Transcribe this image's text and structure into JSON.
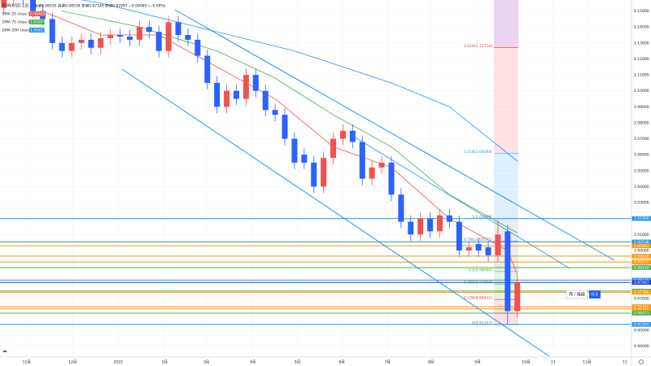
{
  "chart_data": {
    "type": "candlestick",
    "title": "EUR/USD",
    "interval": "1日",
    "info": "始値0.98195 高値0.98538 安値0.97349 終値0.97997 −0.00085 (−0.09%)",
    "up_color": "#ef5350",
    "down_color": "#2962ff",
    "xlim": [
      -0.4,
      64.7
    ],
    "xticks": [
      {
        "value": 2.35,
        "label": "11月"
      },
      {
        "value": 7.1,
        "label": "12月"
      },
      {
        "value": 11.8,
        "label": "2022"
      },
      {
        "value": 16.6,
        "label": "2月"
      },
      {
        "value": 20.9,
        "label": "3月"
      },
      {
        "value": 25.7,
        "label": "4月"
      },
      {
        "value": 30.3,
        "label": "5月"
      },
      {
        "value": 34.9,
        "label": "6月"
      },
      {
        "value": 39.6,
        "label": "7月"
      },
      {
        "value": 44.1,
        "label": "8月"
      },
      {
        "value": 48.9,
        "label": "9月"
      },
      {
        "value": 53.9,
        "label": "10月"
      },
      {
        "value": 56.7,
        "label": "13"
      },
      {
        "value": 60.2,
        "label": "11月"
      },
      {
        "value": 64.1,
        "label": "13"
      }
    ],
    "ylim": [
      0.93323,
      1.15693
    ],
    "yticks": [
      {
        "value": 1.15,
        "label": "1.15000"
      },
      {
        "value": 1.14,
        "label": "1.14000"
      },
      {
        "value": 1.13,
        "label": "1.13000"
      },
      {
        "value": 1.12,
        "label": "1.12000"
      },
      {
        "value": 1.11,
        "label": "1.11000"
      },
      {
        "value": 1.1,
        "label": "1.10000"
      },
      {
        "value": 1.09,
        "label": "1.09000"
      },
      {
        "value": 1.08,
        "label": "1.08000"
      },
      {
        "value": 1.07,
        "label": "1.07000"
      },
      {
        "value": 1.06,
        "label": "1.06000"
      },
      {
        "value": 1.05,
        "label": "1.05000"
      },
      {
        "value": 1.04,
        "label": "1.04000"
      },
      {
        "value": 1.03,
        "label": "1.03000"
      },
      {
        "value": 1.02,
        "label": "1.02000"
      },
      {
        "value": 1.01,
        "label": "1.01000"
      },
      {
        "value": 1.0,
        "label": "1.00000"
      },
      {
        "value": 0.99,
        "label": "0.99000"
      },
      {
        "value": 0.98,
        "label": "0.98000"
      },
      {
        "value": 0.97,
        "label": "0.97000"
      },
      {
        "value": 0.96,
        "label": "0.96000"
      },
      {
        "value": 0.95,
        "label": "0.95000"
      },
      {
        "value": 0.94,
        "label": "0.94000"
      }
    ],
    "open": [
      1.152,
      1.157,
      1.16,
      1.158,
      1.15,
      1.145,
      1.13,
      1.125,
      1.13,
      1.132,
      1.127,
      1.133,
      1.135,
      1.134,
      1.132,
      1.14,
      1.137,
      1.125,
      1.143,
      1.135,
      1.132,
      1.122,
      1.105,
      1.09,
      1.1,
      1.095,
      1.11,
      1.1,
      1.088,
      1.085,
      1.07,
      1.06,
      1.055,
      1.04,
      1.058,
      1.07,
      1.075,
      1.068,
      1.045,
      1.052,
      1.055,
      1.035,
      1.018,
      1.01,
      1.02,
      1.012,
      1.022,
      1.018,
      1.0,
      1.004,
      1.002,
      0.997,
      1.012,
      0.962
    ],
    "high": [
      1.161,
      1.164,
      1.164,
      1.162,
      1.154,
      1.149,
      1.134,
      1.134,
      1.136,
      1.136,
      1.137,
      1.139,
      1.139,
      1.138,
      1.144,
      1.144,
      1.141,
      1.147,
      1.147,
      1.139,
      1.136,
      1.126,
      1.109,
      1.104,
      1.104,
      1.114,
      1.114,
      1.104,
      1.092,
      1.089,
      1.074,
      1.064,
      1.059,
      1.062,
      1.074,
      1.079,
      1.079,
      1.072,
      1.056,
      1.059,
      1.059,
      1.039,
      1.022,
      1.024,
      1.024,
      1.026,
      1.026,
      1.022,
      1.006,
      1.008,
      1.006,
      1.019,
      1.016,
      0.985
    ],
    "low": [
      1.148,
      1.153,
      1.154,
      1.146,
      1.141,
      1.126,
      1.121,
      1.121,
      1.126,
      1.123,
      1.123,
      1.129,
      1.13,
      1.128,
      1.128,
      1.133,
      1.121,
      1.121,
      1.131,
      1.128,
      1.118,
      1.101,
      1.086,
      1.086,
      1.091,
      1.091,
      1.096,
      1.084,
      1.081,
      1.066,
      1.051,
      1.051,
      1.036,
      1.036,
      1.054,
      1.066,
      1.064,
      1.041,
      1.041,
      1.048,
      1.031,
      1.014,
      1.006,
      1.006,
      1.008,
      1.008,
      1.014,
      0.996,
      0.996,
      0.996,
      0.993,
      0.993,
      0.954,
      0.958
    ],
    "close": [
      1.157,
      1.16,
      1.158,
      1.15,
      1.145,
      1.13,
      1.125,
      1.13,
      1.132,
      1.127,
      1.133,
      1.135,
      1.134,
      1.132,
      1.14,
      1.137,
      1.125,
      1.143,
      1.135,
      1.132,
      1.122,
      1.105,
      1.09,
      1.1,
      1.095,
      1.11,
      1.1,
      1.088,
      1.085,
      1.07,
      1.055,
      1.055,
      1.04,
      1.058,
      1.07,
      1.075,
      1.068,
      1.045,
      1.052,
      1.055,
      1.035,
      1.018,
      1.01,
      1.02,
      1.012,
      1.022,
      1.018,
      1.0,
      1.002,
      1.0,
      0.997,
      1.01,
      0.962,
      0.98
    ],
    "series": [
      {
        "name": "EMA 25 close 0",
        "value_label": "0.98481",
        "color": "#ef5350",
        "x": [
          4,
          10,
          16,
          22,
          28,
          34,
          40,
          46,
          52,
          53
        ],
        "values": [
          1.15,
          1.135,
          1.135,
          1.115,
          1.095,
          1.065,
          1.052,
          1.02,
          1.0,
          0.985
        ]
      },
      {
        "name": "EMA 75 close 0",
        "value_label": "1.01077",
        "color": "#4caf50",
        "x": [
          6,
          14,
          22,
          28,
          34,
          40,
          46,
          53
        ],
        "values": [
          1.15,
          1.14,
          1.125,
          1.108,
          1.085,
          1.065,
          1.035,
          1.011
        ]
      },
      {
        "name": "EMA 200 close 0",
        "value_label": "1.05611",
        "color": "#2196f3",
        "x": [
          0,
          10,
          20,
          30,
          40,
          46,
          53
        ],
        "values": [
          1.165,
          1.155,
          1.14,
          1.125,
          1.105,
          1.09,
          1.056
        ]
      }
    ],
    "levels": [
      {
        "value": 1.01999,
        "label": "1.01999",
        "color": "#2196f3"
      },
      {
        "value": 1.00538,
        "label": "1.00538",
        "color": "#2196f3"
      },
      {
        "value": 1.00291,
        "label": "1.00291",
        "color": "#ff9800"
      },
      {
        "value": 0.99648,
        "label": "0.99648",
        "color": "#ff9800"
      },
      {
        "value": 0.99274,
        "label": "0.99274",
        "color": "#ff9800"
      },
      {
        "value": 0.98928,
        "label": "0.98928",
        "color": "#4caf50"
      },
      {
        "value": 0.98146,
        "label": "0.98146",
        "color": "#2196f3"
      },
      {
        "value": 0.97997,
        "label": "0.97997",
        "color": "#1848cc"
      },
      {
        "value": 0.97455,
        "label": "0.97455",
        "color": "#4caf50"
      },
      {
        "value": 0.9738,
        "label": "0.97380",
        "color": "#ff9800"
      },
      {
        "value": 0.96485,
        "label": "0.96485",
        "color": "#ff9800"
      },
      {
        "value": 0.96345,
        "label": "0.96345",
        "color": "#ff9800"
      },
      {
        "value": 0.96073,
        "label": "0.96073",
        "color": "#4caf50"
      },
      {
        "value": 0.95365,
        "label": "0.95365",
        "color": "#2196f3"
      }
    ],
    "fib": [
      {
        "value": 1.12714,
        "label": "2.618(1.12714)",
        "color": "#f23645"
      },
      {
        "value": 1.06088,
        "label": "1.618(1.06088)",
        "color": "#2196f3"
      },
      {
        "value": 1.01999,
        "label": "1(1.01999)",
        "color": "#787b86"
      },
      {
        "value": 1.00577,
        "label": "0.786(1.00577)",
        "color": "#787b86"
      },
      {
        "value": 0.9868,
        "label": "0.5(0.98680)",
        "color": "#4caf50"
      },
      {
        "value": 0.97898,
        "label": "0.382(0.97898)",
        "color": "#4caf50"
      },
      {
        "value": 0.96931,
        "label": "0.236(0.96931)",
        "color": "#f23645"
      },
      {
        "value": 0.95357,
        "label": "0(0.95357)",
        "color": "#787b86"
      }
    ],
    "order_label": "売 / 指値",
    "order_qty": "0.5"
  }
}
